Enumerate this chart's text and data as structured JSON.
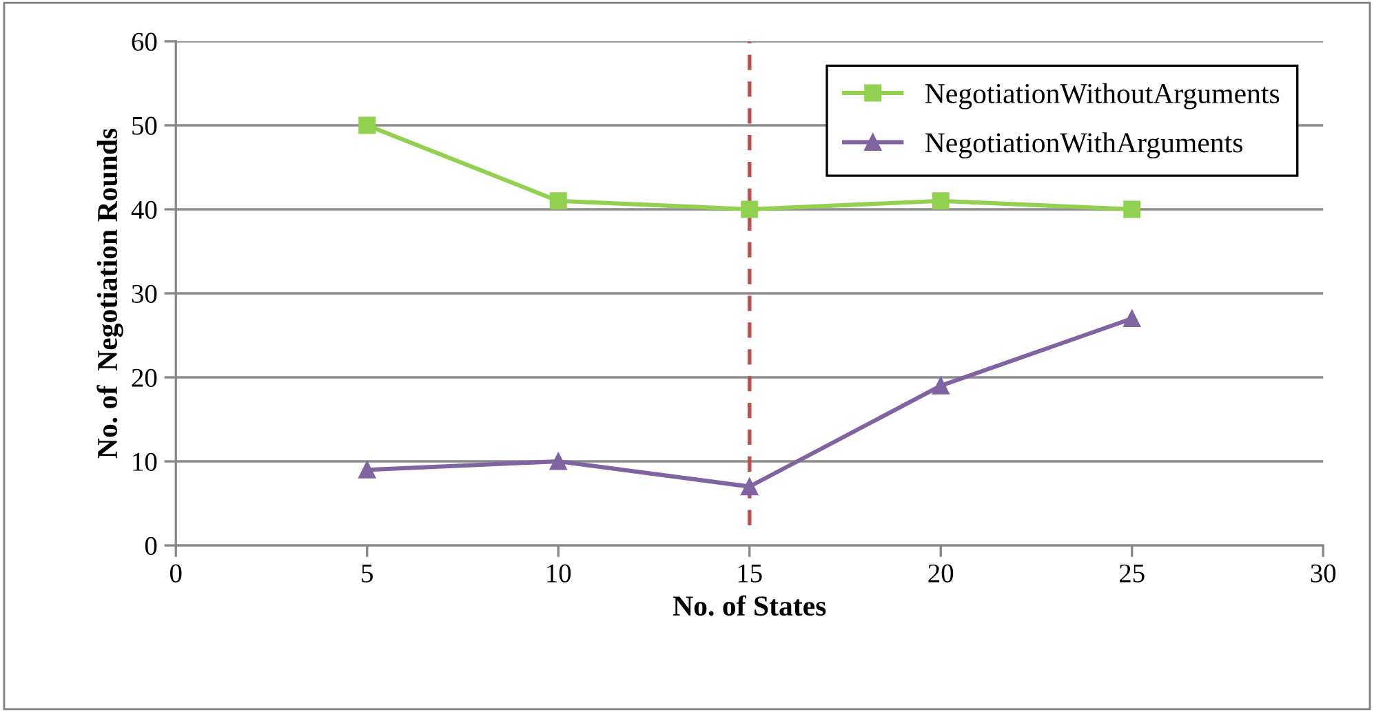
{
  "chart_data": {
    "type": "line",
    "xlabel": "No. of States",
    "ylabel": "No. of  Negotiation Rounds",
    "x": [
      5,
      10,
      15,
      20,
      25
    ],
    "series": [
      {
        "name": "NegotiationWithoutArguments",
        "color": "#92d050",
        "marker": "square",
        "values": [
          50,
          41,
          40,
          41,
          40
        ]
      },
      {
        "name": "NegotiationWithArguments",
        "color": "#8064a2",
        "marker": "triangle",
        "values": [
          9,
          10,
          7,
          19,
          27
        ]
      }
    ],
    "xlim": [
      0,
      30
    ],
    "xticks": [
      0,
      5,
      10,
      15,
      20,
      25,
      30
    ],
    "ylim": [
      0,
      60
    ],
    "yticks": [
      0,
      10,
      20,
      30,
      40,
      50,
      60
    ],
    "grid": "y",
    "legend": "top right",
    "line_style": "solid",
    "ref_lines": [
      {
        "axis": "x",
        "value": 15,
        "color": "#c0504d",
        "line_style": "dashed"
      }
    ]
  }
}
